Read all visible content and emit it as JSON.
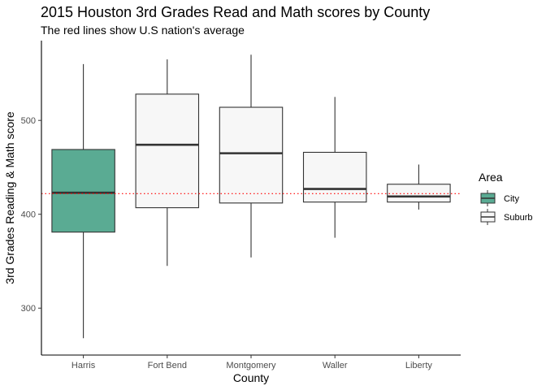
{
  "chart_data": {
    "type": "boxplot",
    "title": "2015 Houston 3rd Grades Read and Math scores by County",
    "subtitle": "The red lines show U.S nation's average",
    "xlabel": "County",
    "ylabel": "3rd Grades Reading & Math score",
    "ylim": [
      250,
      585
    ],
    "yticks": [
      300,
      400,
      500
    ],
    "grid": false,
    "reference_line": {
      "y": 422,
      "color": "#ff0000",
      "style": "dotted"
    },
    "legend": {
      "title": "Area",
      "position": "right",
      "entries": [
        {
          "label": "City",
          "color": "#5aab93"
        },
        {
          "label": "Suburb",
          "color": "#f7f7f7"
        }
      ]
    },
    "categories": [
      "Harris",
      "Fort Bend",
      "Montgomery",
      "Waller",
      "Liberty"
    ],
    "boxes": [
      {
        "category": "Harris",
        "area": "City",
        "min": 268,
        "q1": 381,
        "median": 423,
        "q3": 469,
        "max": 560
      },
      {
        "category": "Fort Bend",
        "area": "Suburb",
        "min": 345,
        "q1": 407,
        "median": 474,
        "q3": 528,
        "max": 565
      },
      {
        "category": "Montgomery",
        "area": "Suburb",
        "min": 354,
        "q1": 412,
        "median": 465,
        "q3": 514,
        "max": 570
      },
      {
        "category": "Waller",
        "area": "Suburb",
        "min": 375,
        "q1": 413,
        "median": 427,
        "q3": 466,
        "max": 525
      },
      {
        "category": "Liberty",
        "area": "Suburb",
        "min": 405,
        "q1": 413,
        "median": 419,
        "q3": 432,
        "max": 453
      }
    ]
  }
}
